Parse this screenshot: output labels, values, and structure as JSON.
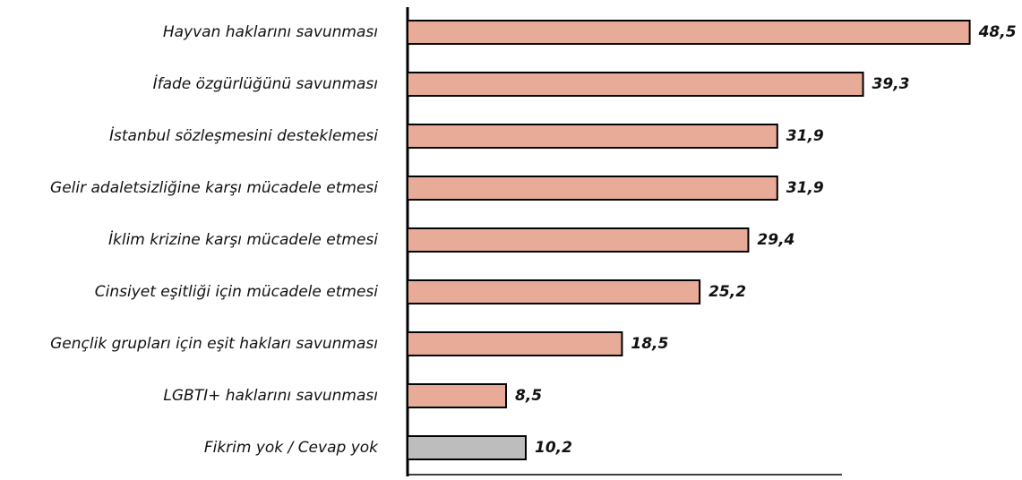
{
  "chart_data": {
    "type": "barh",
    "categories": [
      "Hayvan haklarını savunması",
      "İfade özgürlüğünü savunması",
      "İstanbul sözleşmesini desteklemesi",
      "Gelir adaletsizliğine karşı mücadele etmesi",
      "İklim krizine karşı mücadele etmesi",
      "Cinsiyet eşitliği için mücadele etmesi",
      "Gençlik grupları için eşit hakları savunması",
      "LGBTI+ haklarını savunması",
      "Fikrim yok / Cevap yok"
    ],
    "values": [
      48.5,
      39.3,
      31.9,
      31.9,
      29.4,
      25.2,
      18.5,
      8.5,
      10.2
    ],
    "value_labels": [
      "48,5",
      "39,3",
      "31,9",
      "31,9",
      "29,4",
      "25,2",
      "18,5",
      "8,5",
      "10,2"
    ],
    "colors": [
      "#e8ab98",
      "#e8ab98",
      "#e8ab98",
      "#e8ab98",
      "#e8ab98",
      "#e8ab98",
      "#e8ab98",
      "#e8ab98",
      "#bdbdbd"
    ],
    "xlim": [
      0,
      50
    ]
  }
}
